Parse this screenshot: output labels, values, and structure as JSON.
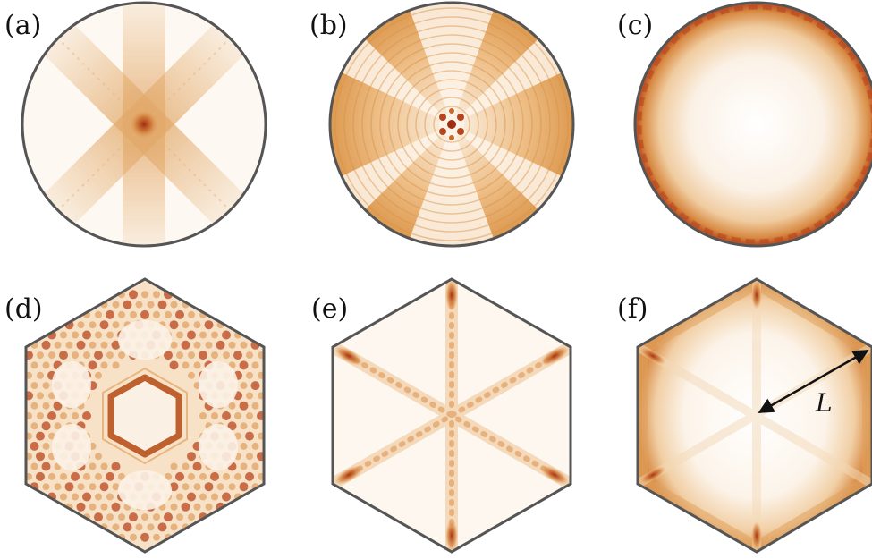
{
  "figure": {
    "panels": [
      {
        "id": "a",
        "label": "(a)",
        "shape": "circle",
        "pattern": "four-arm-cross"
      },
      {
        "id": "b",
        "label": "(b)",
        "shape": "circle",
        "pattern": "concentric-rings-with-dark-center"
      },
      {
        "id": "c",
        "label": "(c)",
        "shape": "circle",
        "pattern": "edge-ring"
      },
      {
        "id": "d",
        "label": "(d)",
        "shape": "hexagon",
        "pattern": "dense-spots-with-inner-hexagon-ring"
      },
      {
        "id": "e",
        "label": "(e)",
        "shape": "hexagon",
        "pattern": "six-rays-with-vertex-spots"
      },
      {
        "id": "f",
        "label": "(f)",
        "shape": "hexagon",
        "pattern": "edge-glow-with-rays"
      }
    ],
    "length_annotation": {
      "label": "L",
      "panel": "f"
    },
    "colors": {
      "light": "#f6e5cf",
      "mid": "#e3a45a",
      "strong": "#c96a2a",
      "dark": "#a02c10",
      "outline": "#555555",
      "arrow": "#111111"
    }
  }
}
